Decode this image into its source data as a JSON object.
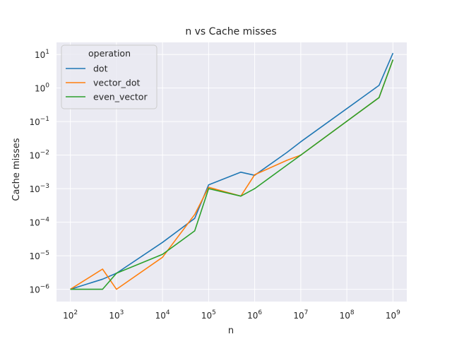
{
  "chart_data": {
    "type": "line",
    "title": "n vs Cache misses",
    "xlabel": "n",
    "ylabel": "Cache misses",
    "xscale": "log",
    "yscale": "log",
    "xlim": [
      50,
      2000000000
    ],
    "ylim": [
      4.3e-07,
      23
    ],
    "xticks": [
      {
        "value": 100,
        "mantissa": "10",
        "exp": "2"
      },
      {
        "value": 1000,
        "mantissa": "10",
        "exp": "3"
      },
      {
        "value": 10000,
        "mantissa": "10",
        "exp": "4"
      },
      {
        "value": 100000,
        "mantissa": "10",
        "exp": "5"
      },
      {
        "value": 1000000,
        "mantissa": "10",
        "exp": "6"
      },
      {
        "value": 10000000,
        "mantissa": "10",
        "exp": "7"
      },
      {
        "value": 100000000,
        "mantissa": "10",
        "exp": "8"
      },
      {
        "value": 1000000000,
        "mantissa": "10",
        "exp": "9"
      }
    ],
    "yticks": [
      {
        "value": 1e-06,
        "mantissa": "10",
        "exp": "−6"
      },
      {
        "value": 1e-05,
        "mantissa": "10",
        "exp": "−5"
      },
      {
        "value": 0.0001,
        "mantissa": "10",
        "exp": "−4"
      },
      {
        "value": 0.001,
        "mantissa": "10",
        "exp": "−3"
      },
      {
        "value": 0.01,
        "mantissa": "10",
        "exp": "−2"
      },
      {
        "value": 0.1,
        "mantissa": "10",
        "exp": "−1"
      },
      {
        "value": 1,
        "mantissa": "10",
        "exp": "0"
      },
      {
        "value": 10,
        "mantissa": "10",
        "exp": "1"
      }
    ],
    "grid": true,
    "background": "#eaeaf2",
    "legend": {
      "title": "operation",
      "placement": "top-left"
    },
    "series": [
      {
        "name": "dot",
        "color": "#1f77b4",
        "x": [
          100,
          500,
          1000,
          10000,
          50000,
          100000,
          500000,
          1000000,
          5000000,
          10000000,
          500000000,
          1000000000
        ],
        "y": [
          1e-06,
          2e-06,
          3e-06,
          2.5e-05,
          0.00013,
          0.0013,
          0.0031,
          0.0025,
          0.012,
          0.025,
          1.2,
          11
        ]
      },
      {
        "name": "vector_dot",
        "color": "#ff7f0e",
        "x": [
          100,
          500,
          1000,
          10000,
          50000,
          100000,
          500000,
          1000000,
          5000000,
          10000000,
          500000000,
          1000000000
        ],
        "y": [
          1e-06,
          4e-06,
          1e-06,
          9e-06,
          0.00017,
          0.0011,
          0.0006,
          0.0026,
          0.007,
          0.01,
          0.52,
          7
        ]
      },
      {
        "name": "even_vector",
        "color": "#2ca02c",
        "x": [
          100,
          500,
          1000,
          10000,
          50000,
          100000,
          500000,
          1000000,
          5000000,
          10000000,
          500000000,
          1000000000
        ],
        "y": [
          1e-06,
          1e-06,
          3e-06,
          1.1e-05,
          5.5e-05,
          0.001,
          0.0006,
          0.001,
          0.005,
          0.01,
          0.52,
          7
        ]
      }
    ]
  }
}
